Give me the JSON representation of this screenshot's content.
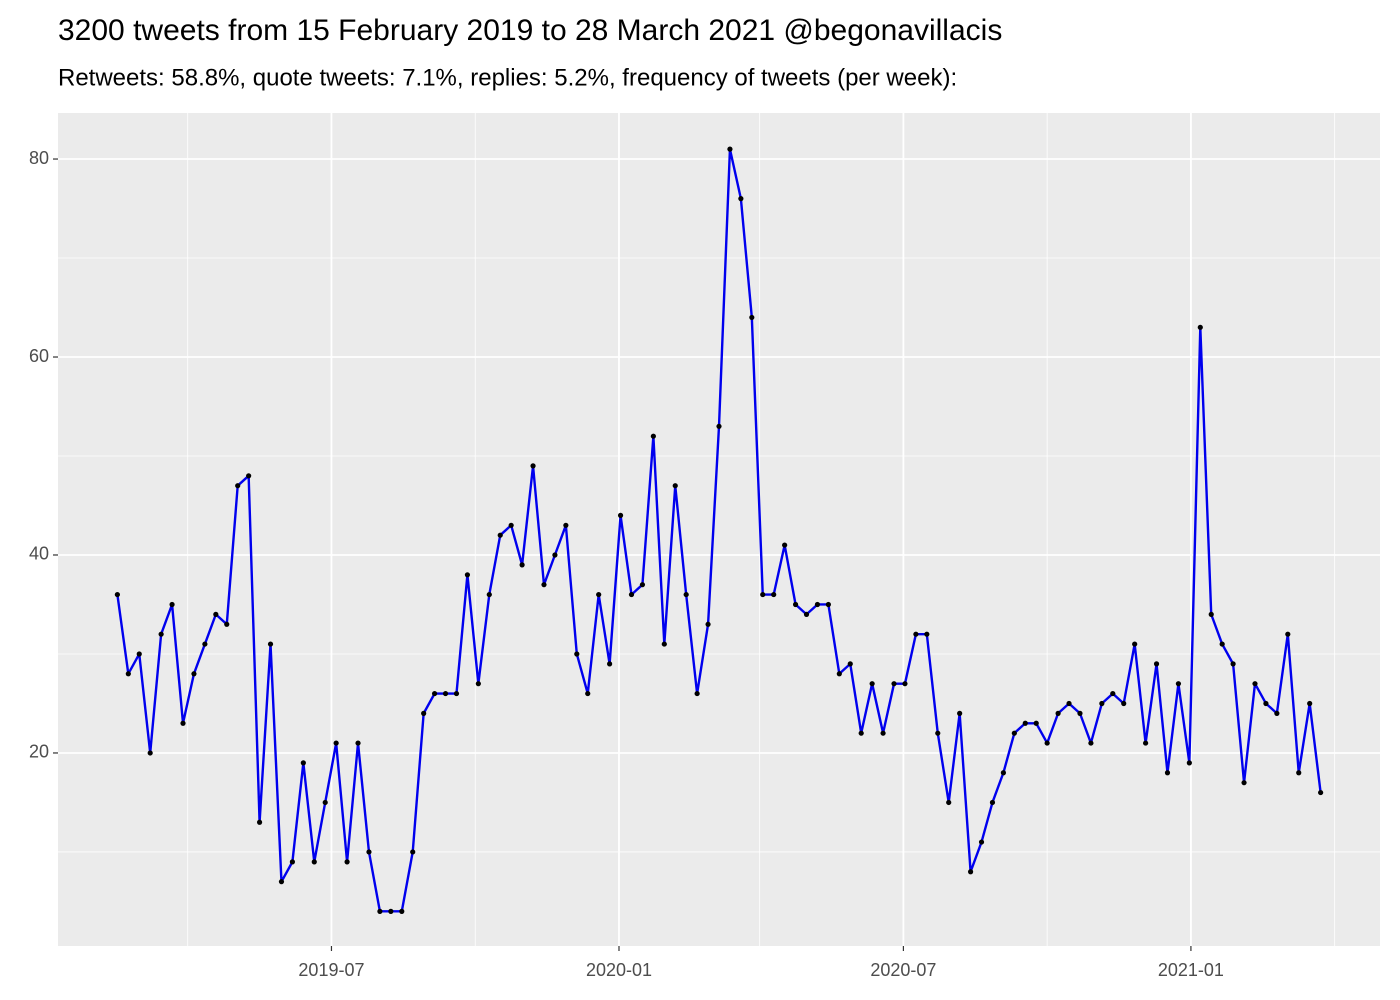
{
  "chart_data": {
    "type": "line",
    "title": "3200 tweets from 15 February 2019 to 28 March 2021 @begonavillacis",
    "subtitle": "Retweets: 58.8%, quote tweets: 7.1%, replies: 5.2%, frequency of tweets (per week):",
    "x": [
      "2019-02-14",
      "2019-02-21",
      "2019-02-28",
      "2019-03-07",
      "2019-03-14",
      "2019-03-21",
      "2019-03-28",
      "2019-04-04",
      "2019-04-11",
      "2019-04-18",
      "2019-04-25",
      "2019-05-02",
      "2019-05-09",
      "2019-05-16",
      "2019-05-23",
      "2019-05-30",
      "2019-06-06",
      "2019-06-13",
      "2019-06-20",
      "2019-06-27",
      "2019-07-04",
      "2019-07-11",
      "2019-07-18",
      "2019-07-25",
      "2019-08-01",
      "2019-08-08",
      "2019-08-15",
      "2019-08-22",
      "2019-08-29",
      "2019-09-05",
      "2019-09-12",
      "2019-09-19",
      "2019-09-26",
      "2019-10-03",
      "2019-10-10",
      "2019-10-17",
      "2019-10-24",
      "2019-10-31",
      "2019-11-07",
      "2019-11-14",
      "2019-11-21",
      "2019-11-28",
      "2019-12-05",
      "2019-12-12",
      "2019-12-19",
      "2019-12-26",
      "2020-01-02",
      "2020-01-09",
      "2020-01-16",
      "2020-01-23",
      "2020-01-30",
      "2020-02-06",
      "2020-02-13",
      "2020-02-20",
      "2020-02-27",
      "2020-03-05",
      "2020-03-12",
      "2020-03-19",
      "2020-03-26",
      "2020-04-02",
      "2020-04-09",
      "2020-04-16",
      "2020-04-23",
      "2020-04-30",
      "2020-05-07",
      "2020-05-14",
      "2020-05-21",
      "2020-05-28",
      "2020-06-04",
      "2020-06-11",
      "2020-06-18",
      "2020-06-25",
      "2020-07-02",
      "2020-07-09",
      "2020-07-16",
      "2020-07-23",
      "2020-07-30",
      "2020-08-06",
      "2020-08-13",
      "2020-08-20",
      "2020-08-27",
      "2020-09-03",
      "2020-09-10",
      "2020-09-17",
      "2020-09-24",
      "2020-10-01",
      "2020-10-08",
      "2020-10-15",
      "2020-10-22",
      "2020-10-29",
      "2020-11-05",
      "2020-11-12",
      "2020-11-19",
      "2020-11-26",
      "2020-12-03",
      "2020-12-10",
      "2020-12-17",
      "2020-12-24",
      "2020-12-31",
      "2021-01-07",
      "2021-01-14",
      "2021-01-21",
      "2021-01-28",
      "2021-02-04",
      "2021-02-11",
      "2021-02-18",
      "2021-02-25",
      "2021-03-04",
      "2021-03-11",
      "2021-03-18",
      "2021-03-25"
    ],
    "values": [
      36,
      28,
      30,
      20,
      32,
      35,
      23,
      28,
      31,
      34,
      33,
      47,
      48,
      13,
      31,
      7,
      9,
      19,
      9,
      15,
      21,
      9,
      21,
      10,
      4,
      4,
      4,
      10,
      24,
      26,
      26,
      26,
      38,
      27,
      36,
      42,
      43,
      39,
      49,
      37,
      40,
      43,
      30,
      26,
      36,
      29,
      44,
      36,
      37,
      52,
      31,
      47,
      36,
      26,
      33,
      53,
      81,
      76,
      64,
      36,
      36,
      41,
      35,
      34,
      35,
      35,
      28,
      29,
      22,
      27,
      22,
      27,
      27,
      32,
      32,
      22,
      15,
      24,
      8,
      11,
      15,
      18,
      22,
      23,
      23,
      21,
      24,
      25,
      24,
      21,
      25,
      26,
      25,
      31,
      21,
      29,
      18,
      27,
      19,
      63,
      34,
      31,
      29,
      17,
      27,
      25,
      24,
      32,
      18,
      25,
      16
    ],
    "color": "#0000ee",
    "point_color": "#000000",
    "xlim": [
      "2019-01-07",
      "2021-05-02"
    ],
    "xticks": [
      {
        "value": "2019-07-01",
        "label": "2019-07"
      },
      {
        "value": "2020-01-01",
        "label": "2020-01"
      },
      {
        "value": "2020-07-01",
        "label": "2020-07"
      },
      {
        "value": "2021-01-01",
        "label": "2021-01"
      }
    ],
    "ylim": [
      0.5,
      84.65
    ],
    "yticks": [
      20,
      40,
      60,
      80
    ],
    "grid": true
  }
}
